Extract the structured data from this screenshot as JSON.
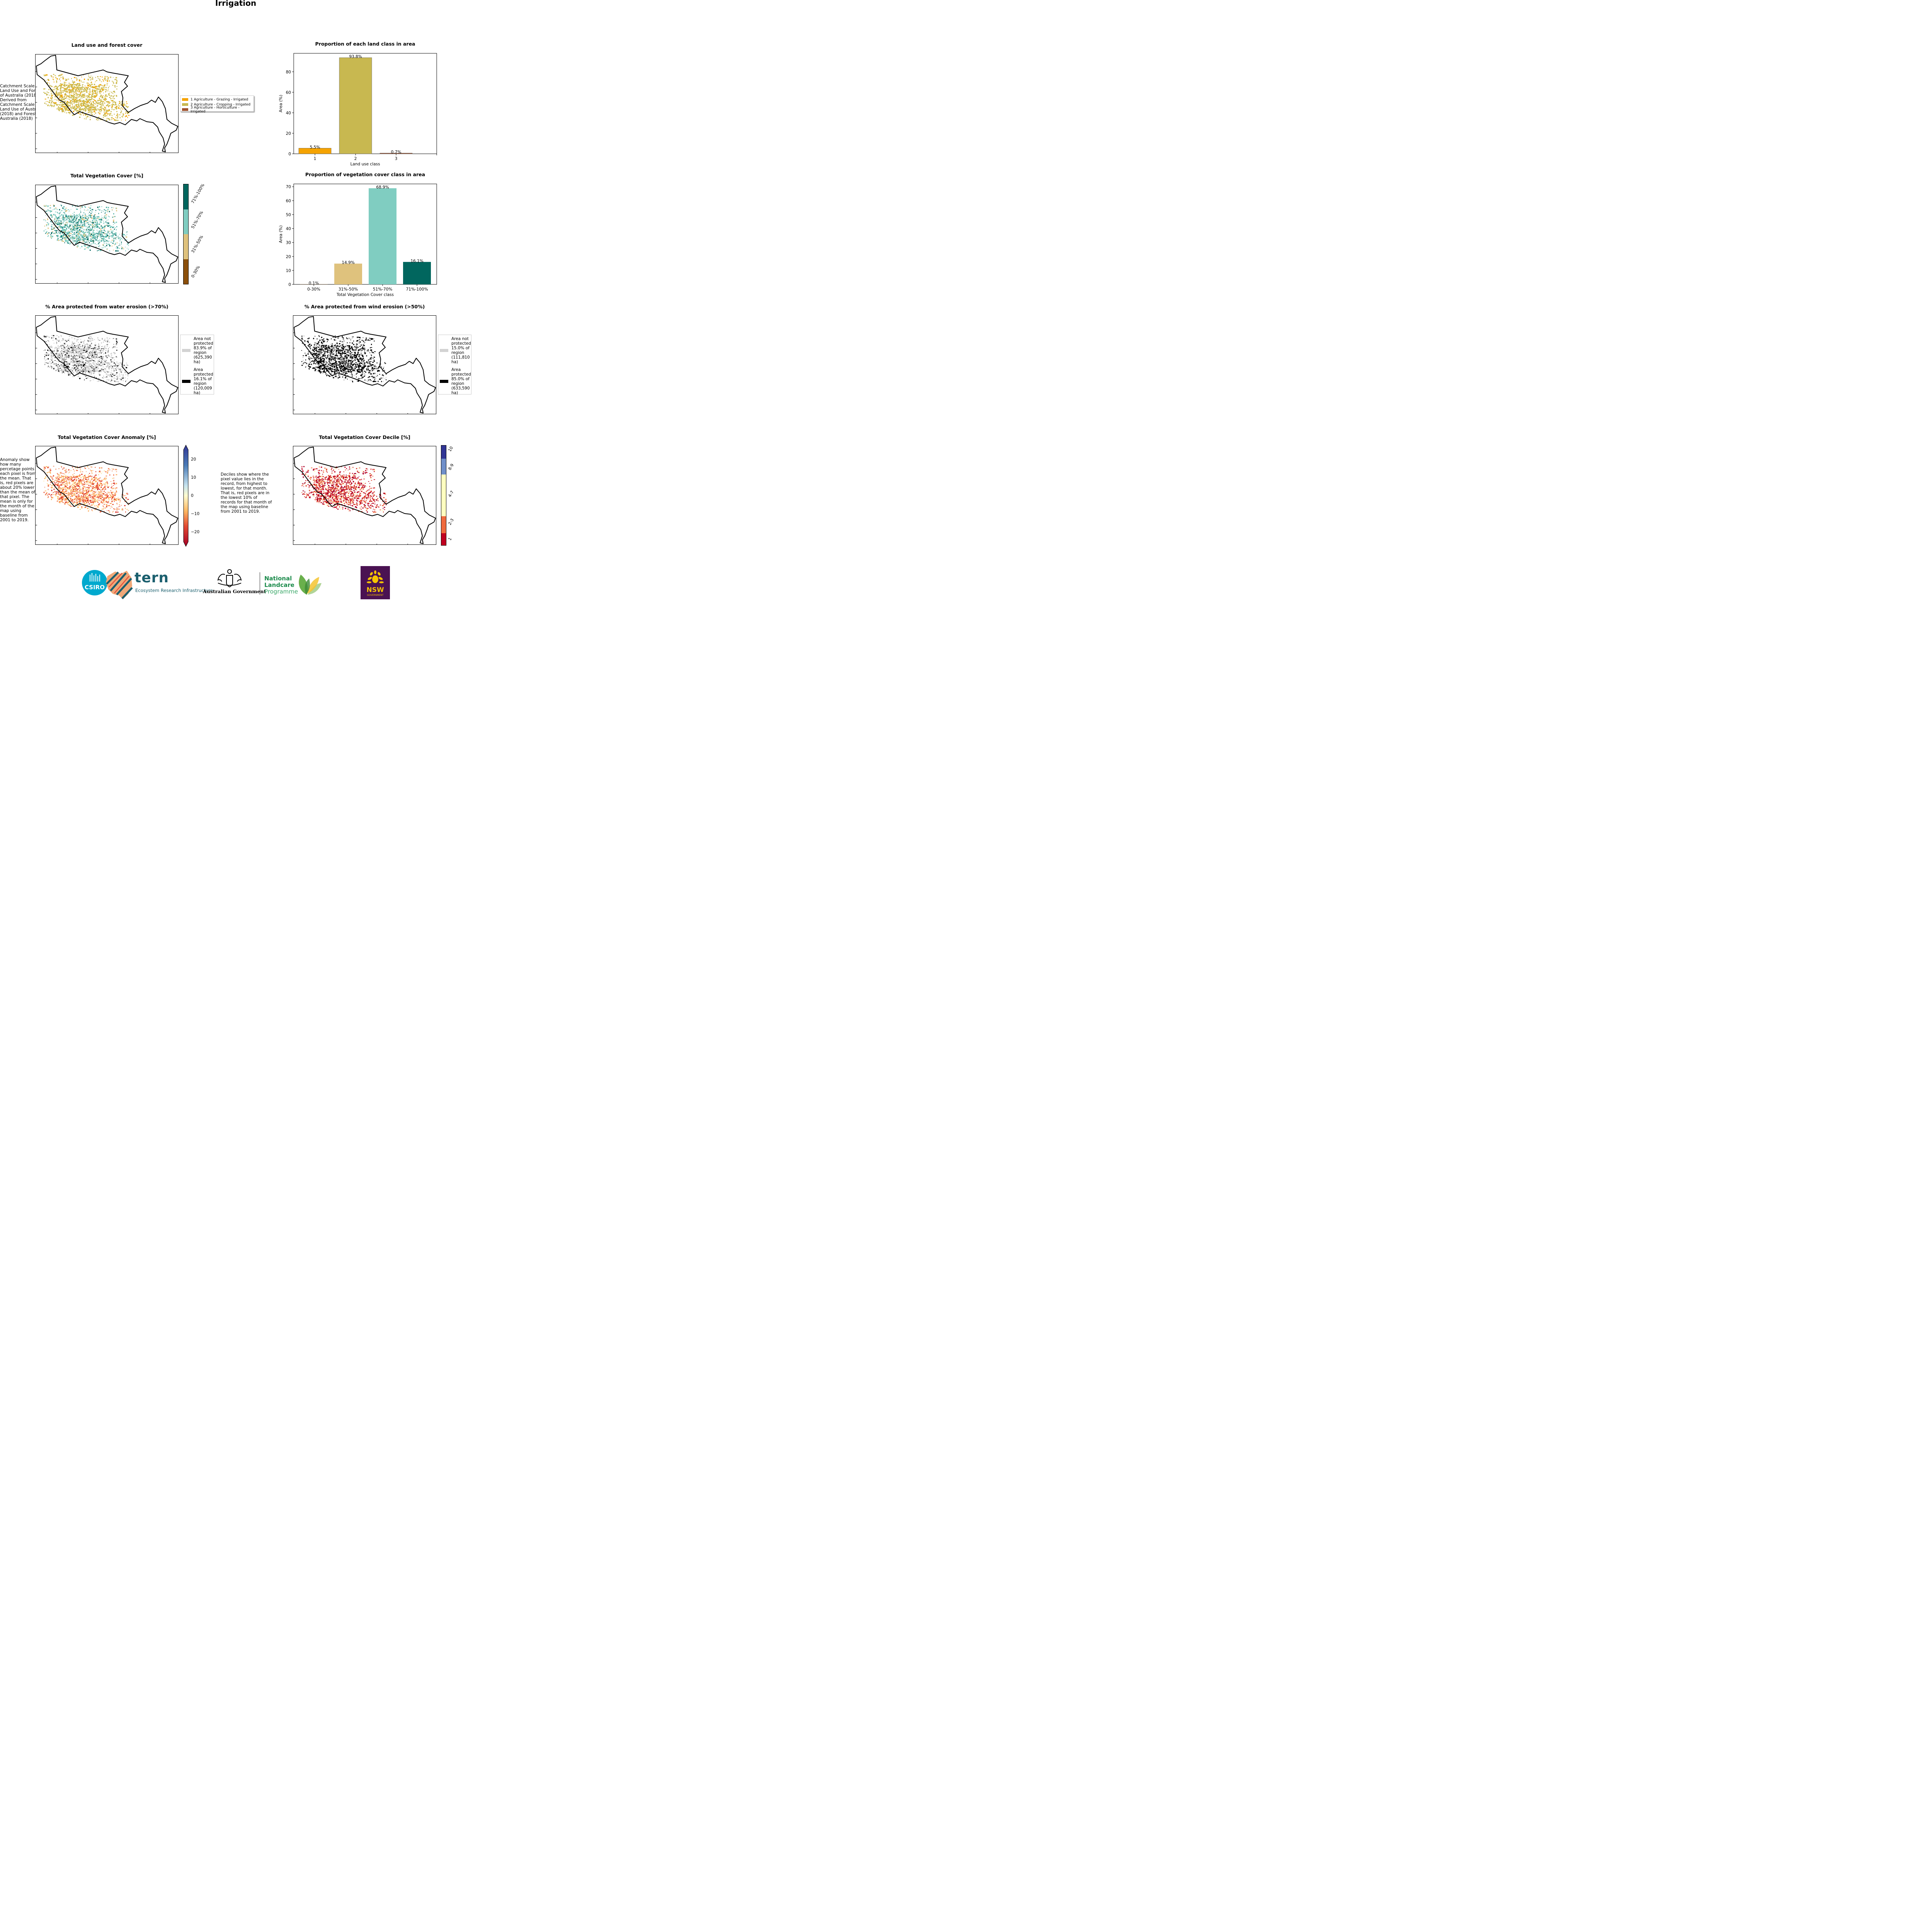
{
  "page_title": "Irrigation",
  "panels": {
    "land_use": {
      "title": "Land use and forest cover",
      "side_note": "Catchment Scale Land Use and Forests of Australia (2018) Derived from Catchment Scale Land Use of Australia (2018) and Forests of Australia (2018)",
      "legend": [
        {
          "label": "1 Agriculture - Grazing - Irrigated",
          "color": "#f5a300"
        },
        {
          "label": "2 Agriculture - Cropping - Irrigated",
          "color": "#c8b850"
        },
        {
          "label": "3 Agriculture - Horticulture - Irrigated",
          "color": "#a0522d"
        }
      ]
    },
    "veg_cover": {
      "title": "Total Vegetation Cover [%]",
      "colorbar": [
        {
          "label": "0-30%",
          "color": "#8b4f0a"
        },
        {
          "label": "31%-50%",
          "color": "#dfc27d"
        },
        {
          "label": "51%-70%",
          "color": "#80cdc1"
        },
        {
          "label": "71%-100%",
          "color": "#01665e"
        }
      ]
    },
    "water_erosion": {
      "title": "% Area protected from water erosion (>70%)",
      "legend": [
        {
          "label": "Area not protected 83.9% of region (625,390 ha)",
          "color": "#d3d3d3"
        },
        {
          "label": "Area protected 16.1% of region (120,009 ha)",
          "color": "#000000"
        }
      ]
    },
    "wind_erosion": {
      "title": "% Area protected from wind erosion (>50%)",
      "legend": [
        {
          "label": "Area not protected 15.0% of region (111,810 ha)",
          "color": "#d3d3d3"
        },
        {
          "label": "Area protected 85.0% of region (633,590 ha)",
          "color": "#000000"
        }
      ]
    },
    "anomaly": {
      "title": "Total Vegetation Cover Anomaly [%]",
      "side_note": "Anomaly show how many percetage points each pixel is from the mean. That is, red pixels are about 20% lower than the mean of that pixel. The mean is only for the month of the map using baseline from 2001 to 2019.",
      "colorbar_ticks": [
        "20",
        "10",
        "0",
        "−10",
        "−20"
      ]
    },
    "decile": {
      "title": "Total Vegetation Cover Decile [%]",
      "side_note": "Deciles show where the pixel value lies in the record, from highest to lowest, for that month. That is, red pixels are in the lowest 10% of records for that month of the map using baseline from 2001 to 2019.",
      "colorbar": [
        {
          "label": "10",
          "color": "#313695"
        },
        {
          "label": "8-9",
          "color": "#6f8fc9"
        },
        {
          "label": "4-7",
          "color": "#ffffc0"
        },
        {
          "label": "2-3",
          "color": "#ef6a3e"
        },
        {
          "label": "1",
          "color": "#c00020"
        }
      ]
    }
  },
  "chart_data": [
    {
      "type": "bar",
      "title": "Proportion of each land class in area",
      "xlabel": "Land use class",
      "ylabel": "Area (%)",
      "categories": [
        "1",
        "2",
        "3"
      ],
      "values": [
        5.5,
        93.8,
        0.7
      ],
      "data_labels": [
        "5.5%",
        "93.8%",
        "0.7%"
      ],
      "colors": [
        "#f5a300",
        "#c8b850",
        "#a0522d"
      ],
      "ylim": [
        0,
        98
      ],
      "yticks": [
        0,
        20,
        40,
        60,
        80
      ]
    },
    {
      "type": "bar",
      "title": "Proportion of vegetation cover class in area",
      "xlabel": "Total Vegetation Cover class",
      "ylabel": "Area (%)",
      "categories": [
        "0-30%",
        "31%-50%",
        "51%-70%",
        "71%-100%"
      ],
      "values": [
        0.1,
        14.9,
        68.9,
        16.1
      ],
      "data_labels": [
        "0.1%",
        "14.9%",
        "68.9%",
        "16.1%"
      ],
      "colors": [
        "#8b4f0a",
        "#dfc27d",
        "#80cdc1",
        "#01665e"
      ],
      "ylim": [
        0,
        72
      ],
      "yticks": [
        0,
        10,
        20,
        30,
        40,
        50,
        60,
        70
      ]
    }
  ],
  "logos": {
    "csiro": "CSIRO",
    "tern": "tern",
    "tern_sub": "Ecosystem Research Infrastructure",
    "aus_gov": "Australian Government",
    "landcare_1": "National",
    "landcare_2": "Landcare",
    "landcare_3": "Programme",
    "nsw": "NSW",
    "nsw_sub": "GOVERNMENT"
  }
}
